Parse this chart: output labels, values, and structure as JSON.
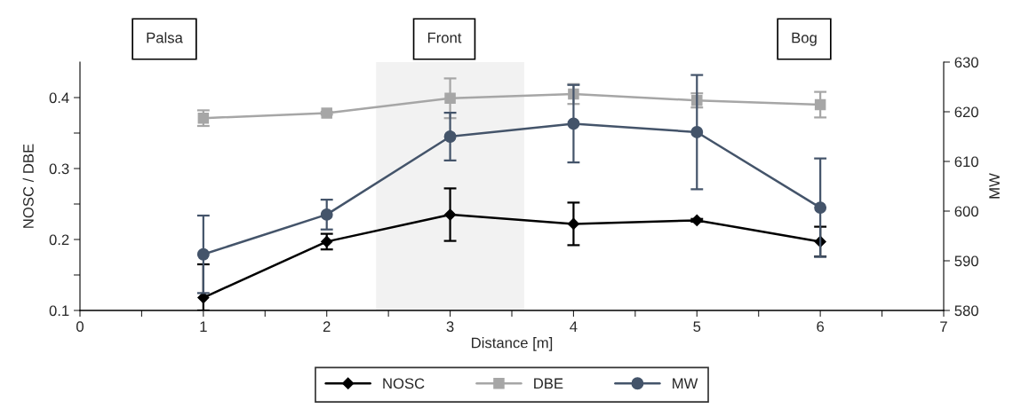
{
  "chart_data": {
    "type": "line",
    "xlabel": "Distance [m]",
    "ylabel": "NOSC / DBE",
    "y2label": "MW",
    "x": [
      1,
      2,
      3,
      4,
      5,
      6
    ],
    "xlim": [
      0,
      7
    ],
    "xticks": [
      0,
      {
        "value": 0.5,
        "label": null
      },
      1,
      {
        "value": 1.5,
        "label": null
      },
      2,
      {
        "value": 2.5,
        "label": null
      },
      3,
      {
        "value": 3.5,
        "label": null
      },
      4,
      {
        "value": 4.5,
        "label": null
      },
      5,
      {
        "value": 5.5,
        "label": null
      },
      6,
      {
        "value": 6.5,
        "label": null
      },
      7
    ],
    "ylim": [
      0.1,
      0.45
    ],
    "yticks": [
      0.1,
      {
        "value": 0.15,
        "label": null
      },
      0.2,
      {
        "value": 0.25,
        "label": null
      },
      0.3,
      {
        "value": 0.35,
        "label": null
      },
      0.4
    ],
    "y2lim": [
      580,
      630
    ],
    "y2ticks": [
      580,
      590,
      600,
      610,
      620,
      630
    ],
    "series": [
      {
        "name": "NOSC",
        "color": "#000000",
        "marker": "diamond",
        "values": [
          0.118,
          0.197,
          0.235,
          0.222,
          0.227,
          0.197
        ],
        "errors": [
          [
            0.1,
            0.165
          ],
          0.011,
          0.037,
          0.03,
          0.002,
          0.021
        ]
      },
      {
        "name": "DBE",
        "color": "#a6a6a6",
        "marker": "square",
        "values": [
          0.371,
          0.378,
          0.399,
          0.405,
          0.396,
          0.39
        ],
        "errors": [
          0.011,
          0.002,
          0.028,
          0.014,
          0.01,
          0.018
        ]
      },
      {
        "name": "MW",
        "color": "#44546a",
        "marker": "circle",
        "axis": "y2",
        "values": [
          591.3,
          599.3,
          615.0,
          617.6,
          615.9,
          600.7
        ],
        "errors": [
          7.8,
          3.0,
          4.8,
          7.8,
          11.5,
          9.9
        ]
      }
    ],
    "bands": [
      {
        "axis": "x",
        "from": 2.4,
        "to": 3.6,
        "color": "#f2f2f2"
      }
    ],
    "annotations": [
      "Palsa",
      "Front",
      "Bog"
    ],
    "legend": "bottom",
    "grid": false
  }
}
